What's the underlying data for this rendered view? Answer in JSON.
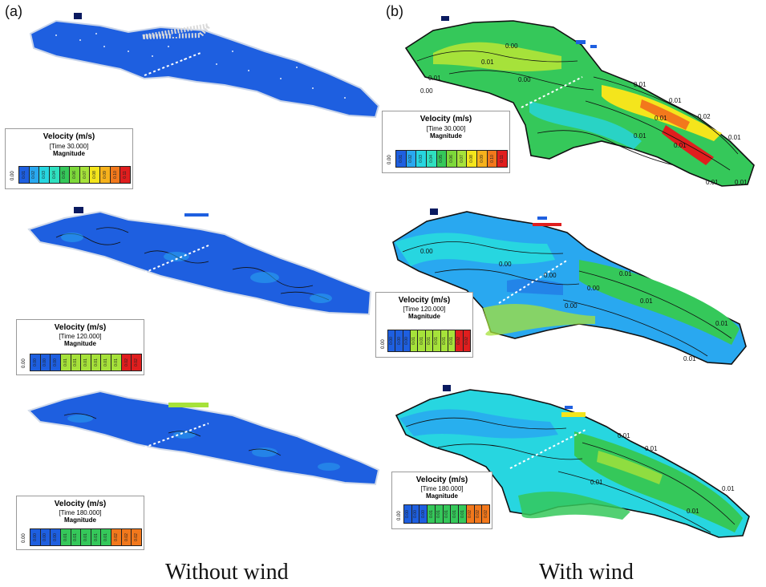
{
  "panel_labels": {
    "a": "(a)",
    "b": "(b)"
  },
  "captions": {
    "left": "Without wind",
    "right": "With wind"
  },
  "colors": {
    "blue": "#1e5fe0",
    "light_blue": "#29a8f0",
    "cyan": "#27d6e0",
    "green": "#35c85a",
    "lime": "#a6e23a",
    "yellow": "#f4e51c",
    "orange": "#f2781c",
    "red": "#e01e1e",
    "outline": "#111111"
  },
  "legends": {
    "a1": {
      "title": "Velocity (m/s)",
      "time": "[Time 30.000]",
      "magnitude": "Magnitude",
      "zero": "0.00",
      "ticks": [
        "0.01",
        "0.02",
        "0.03",
        "0.04",
        "0.05",
        "0.06",
        "0.07",
        "0.08",
        "0.09",
        "0.10",
        "0.11"
      ]
    },
    "a2": {
      "title": "Velocity (m/s)",
      "time": "[Time 120.000]",
      "magnitude": "Magnitude",
      "zero": "0.00",
      "ticks": [
        "0.00",
        "0.00",
        "0.00",
        "0.01",
        "0.01",
        "0.01",
        "0.01",
        "0.01",
        "0.01",
        "0.02",
        "0.02"
      ]
    },
    "a3": {
      "title": "Velocity (m/s)",
      "time": "[Time 180.000]",
      "magnitude": "Magnitude",
      "zero": "0.00",
      "ticks": [
        "0.00",
        "0.00",
        "0.00",
        "0.01",
        "0.01",
        "0.01",
        "0.01",
        "0.01",
        "0.02",
        "0.02",
        "0.02"
      ]
    },
    "b1": {
      "title": "Velocity (m/s)",
      "time": "[Time 30.000]",
      "magnitude": "Magnitude",
      "zero": "0.00",
      "ticks": [
        "0.01",
        "0.02",
        "0.03",
        "0.04",
        "0.05",
        "0.06",
        "0.07",
        "0.08",
        "0.09",
        "0.10",
        "0.11"
      ]
    },
    "b2": {
      "title": "Velocity (m/s)",
      "time": "[Time 120.000]",
      "magnitude": "Magnitude",
      "zero": "0.00",
      "ticks": [
        "0.00",
        "0.00",
        "0.00",
        "0.01",
        "0.01",
        "0.01",
        "0.01",
        "0.01",
        "0.01",
        "0.02",
        "0.02"
      ]
    },
    "b3": {
      "title": "Velocity (m/s)",
      "time": "[Time 180.000]",
      "magnitude": "Magnitude",
      "zero": "0.00",
      "ticks": [
        "0.00",
        "0.00",
        "0.00",
        "0.01",
        "0.01",
        "0.01",
        "0.01",
        "0.01",
        "0.02",
        "0.02",
        "0.02"
      ]
    }
  },
  "contour_labels": {
    "b1": [
      "0.00",
      "0.01",
      "0.01",
      "0.00",
      "0.00",
      "0.01",
      "0.01",
      "0.01",
      "0.02",
      "0.01",
      "0.01",
      "0.01",
      "0.01",
      "0.01"
    ],
    "b2": [
      "0.00",
      "0.00",
      "0.00",
      "0.01",
      "0.00",
      "0.01",
      "0.00",
      "0.01",
      "0.01"
    ],
    "b3": [
      "0.01",
      "0.01",
      "0.01",
      "0.01",
      "0.01"
    ]
  }
}
